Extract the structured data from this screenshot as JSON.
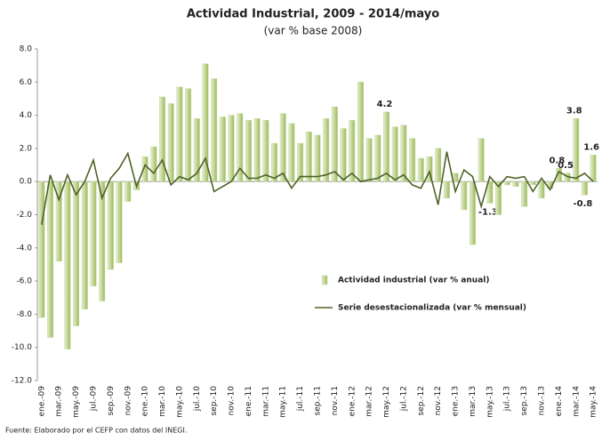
{
  "chart_data": {
    "type": "bar_line",
    "title": "Actividad Industrial, 2009 - 2014/mayo",
    "subtitle": "(var % base 2008)",
    "source": "Fuente: Elaborado por el CEFP con datos del INEGI.",
    "categories": [
      "ene.-09",
      null,
      "mar.-09",
      null,
      "may.-09",
      null,
      "jul.-09",
      null,
      "sep.-09",
      null,
      "nov.-09",
      null,
      "ene.-10",
      null,
      "mar.-10",
      null,
      "may.-10",
      null,
      "jul.-10",
      null,
      "sep.-10",
      null,
      "nov.-10",
      null,
      "ene.-11",
      null,
      "mar.-11",
      null,
      "may.-11",
      null,
      "jul.-11",
      null,
      "sep.-11",
      null,
      "nov.-11",
      null,
      "ene.-12",
      null,
      "mar.-12",
      null,
      "may.-12",
      null,
      "jul.-12",
      null,
      "sep.-12",
      null,
      "nov.-12",
      null,
      "ene.-13",
      null,
      "mar.-13",
      null,
      "may.-13",
      null,
      "jul.-13",
      null,
      "sep.-13",
      null,
      "nov.-13",
      null,
      "ene.-14",
      null,
      "mar.-14",
      null,
      "may.-14"
    ],
    "series": [
      {
        "name": "Actividad industrial (var % anual)",
        "kind": "bar",
        "color": "#c3d69b",
        "values": [
          -8.2,
          -9.4,
          -4.8,
          -10.1,
          -8.7,
          -7.7,
          -6.3,
          -7.2,
          -5.3,
          -4.9,
          -1.2,
          -0.5,
          1.5,
          2.1,
          5.1,
          4.7,
          5.7,
          5.6,
          3.8,
          7.1,
          6.2,
          3.9,
          4.0,
          4.1,
          3.7,
          3.8,
          3.7,
          2.3,
          4.1,
          3.5,
          2.3,
          3.0,
          2.8,
          3.8,
          4.5,
          3.2,
          3.7,
          6.0,
          2.6,
          2.8,
          4.2,
          3.3,
          3.4,
          2.6,
          1.4,
          1.5,
          2.0,
          -1.0,
          0.5,
          -1.7,
          -3.8,
          2.6,
          -1.3,
          -2.0,
          -0.2,
          -0.3,
          -1.5,
          -0.2,
          -1.0,
          -0.4,
          0.8,
          0.5,
          3.8,
          -0.8,
          1.6
        ],
        "value_labels": [
          null,
          null,
          null,
          null,
          null,
          null,
          null,
          null,
          null,
          null,
          null,
          null,
          null,
          null,
          null,
          null,
          null,
          null,
          null,
          null,
          null,
          null,
          null,
          null,
          null,
          null,
          null,
          null,
          null,
          null,
          null,
          null,
          null,
          null,
          null,
          null,
          null,
          null,
          null,
          null,
          "4.2",
          null,
          null,
          null,
          null,
          null,
          null,
          null,
          null,
          null,
          null,
          null,
          "-1.3",
          null,
          null,
          null,
          null,
          null,
          null,
          null,
          "0.8",
          "0.5",
          "3.8",
          "-0.8",
          "1.6"
        ]
      },
      {
        "name": "Serie desestacionalizada (var % mensual)",
        "kind": "line",
        "color": "#4f6228",
        "values": [
          -2.6,
          0.4,
          -1.1,
          0.4,
          -0.8,
          0.0,
          1.3,
          -1.0,
          0.2,
          0.8,
          1.7,
          -0.3,
          1.0,
          0.5,
          1.3,
          -0.2,
          0.3,
          0.1,
          0.5,
          1.4,
          -0.6,
          -0.3,
          0.0,
          0.8,
          0.2,
          0.2,
          0.4,
          0.2,
          0.5,
          -0.4,
          0.3,
          0.3,
          0.3,
          0.4,
          0.6,
          0.1,
          0.5,
          0.0,
          0.1,
          0.2,
          0.5,
          0.1,
          0.4,
          -0.2,
          -0.4,
          0.6,
          -1.4,
          1.8,
          -0.6,
          0.7,
          0.3,
          -1.5,
          0.3,
          -0.3,
          0.3,
          0.2,
          0.3,
          -0.6,
          0.2,
          -0.5,
          0.6,
          0.3,
          0.2,
          0.5,
          0.0
        ]
      }
    ],
    "ylim": [
      -12,
      8
    ],
    "yticks": [
      {
        "value": 8,
        "label": "8.0"
      },
      {
        "value": 6,
        "label": "6.0"
      },
      {
        "value": 4,
        "label": "4.0"
      },
      {
        "value": 2,
        "label": "2.0"
      },
      {
        "value": 0,
        "label": "0.0"
      },
      {
        "value": -2,
        "label": "-2.0"
      },
      {
        "value": -4,
        "label": "-4.0"
      },
      {
        "value": -6,
        "label": "-6.0"
      },
      {
        "value": -8,
        "label": "-8.0"
      },
      {
        "value": -10,
        "label": "-10.0"
      },
      {
        "value": -12,
        "label": "-12.0"
      }
    ],
    "grid": false,
    "legend": "center-right"
  }
}
